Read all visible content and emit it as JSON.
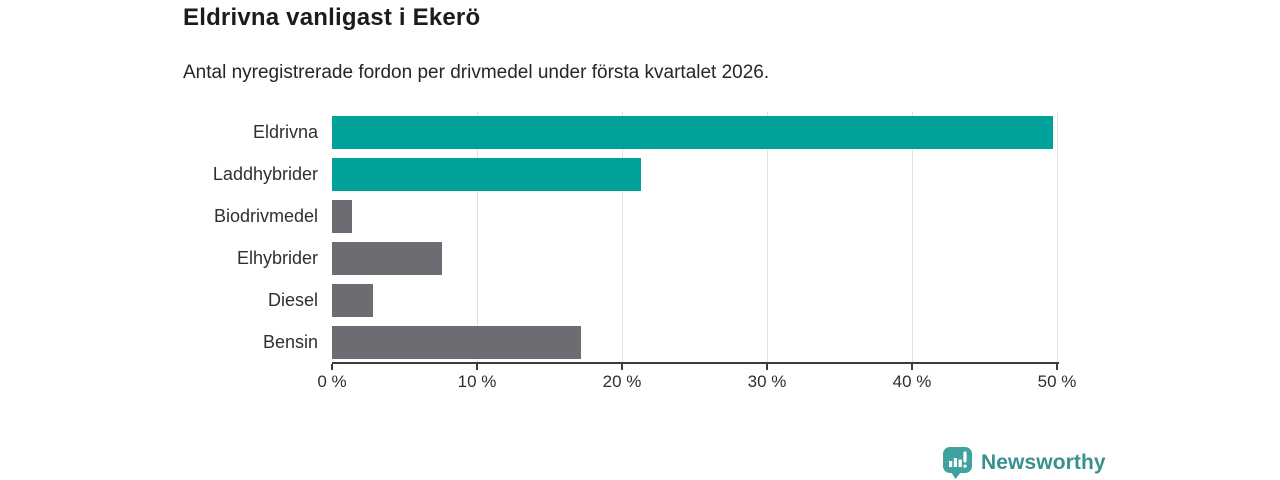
{
  "header": {
    "title": "Eldrivna vanligast i Ekerö",
    "subtitle": "Antal nyregistrerade fordon per drivmedel under första kvartalet 2026."
  },
  "chart_data": {
    "type": "bar",
    "orientation": "horizontal",
    "title": "Eldrivna vanligast i Ekerö",
    "subtitle": "Antal nyregistrerade fordon per drivmedel under första kvartalet 2026.",
    "categories": [
      "Eldrivna",
      "Laddhybrider",
      "Biodrivmedel",
      "Elhybrider",
      "Diesel",
      "Bensin"
    ],
    "values": [
      49.7,
      21.3,
      1.4,
      7.6,
      2.8,
      17.2
    ],
    "unit": "%",
    "bar_colors": [
      "#00a29a",
      "#00a29a",
      "#6c6c72",
      "#6c6c72",
      "#6c6c72",
      "#6c6c72"
    ],
    "xlim": [
      0,
      50
    ],
    "x_ticks": [
      0,
      10,
      20,
      30,
      40,
      50
    ],
    "x_tick_labels": [
      "0 %",
      "10 %",
      "20 %",
      "30 %",
      "40 %",
      "50 %"
    ],
    "xlabel": "",
    "ylabel": "",
    "grid": "vertical",
    "legend": "none"
  },
  "colors": {
    "highlight_bar": "#00a29a",
    "default_bar": "#6c6c72",
    "gridline": "#e2e2e2",
    "axis": "#3c3c3c",
    "logo_teal": "#37918f",
    "logo_icon_fill": "#3fa29e"
  },
  "branding": {
    "logo_text": "Newsworthy",
    "logo_icon": "bar-chart-speech-bubble-icon"
  }
}
